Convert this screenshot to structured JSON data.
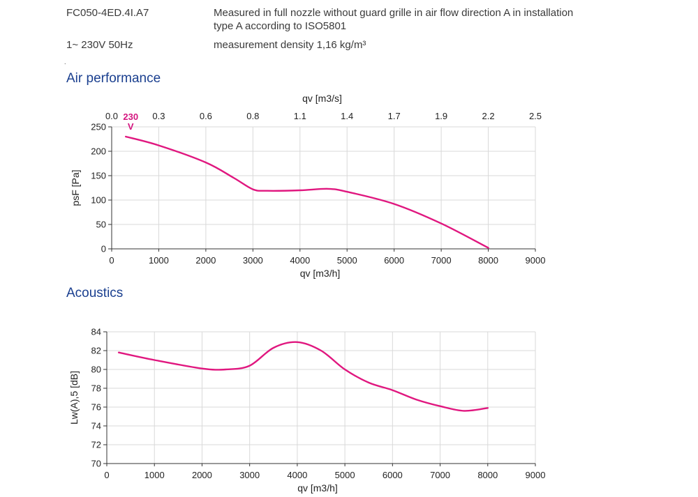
{
  "header": {
    "model": "FC050-4ED.4I.A7",
    "supply": "1~ 230V 50Hz",
    "desc_line1": "Measured in full nozzle without guard grille in air flow direction A in installation",
    "desc_line2": "type A according to ISO5801",
    "density": "measurement density 1,16 kg/m³",
    "dot": "."
  },
  "colors": {
    "curve": "#e0177f",
    "title": "#1a3f8f",
    "grid": "#d9d9d9"
  },
  "chart_data": [
    {
      "type": "line",
      "section_title": "Air performance",
      "xlabel": "qv [m3/h]",
      "x2label": "qv [m3/s]",
      "ylabel": "psF [Pa]",
      "xlim": [
        0,
        9000
      ],
      "ylim": [
        0,
        250
      ],
      "x_ticks": [
        "0",
        "1000",
        "2000",
        "3000",
        "4000",
        "5000",
        "6000",
        "7000",
        "8000",
        "9000"
      ],
      "x2_ticks": [
        "0.0",
        "0.3",
        "0.6",
        "0.8",
        "1.1",
        "1.4",
        "1.7",
        "1.9",
        "2.2",
        "2.5"
      ],
      "y_ticks": [
        "0",
        "50",
        "100",
        "150",
        "200",
        "250"
      ],
      "grid": true,
      "series": [
        {
          "name": "230 V",
          "label_top": "230",
          "label_bottom": "V",
          "x": [
            300,
            1000,
            2000,
            2600,
            3000,
            3300,
            4000,
            4600,
            5000,
            6000,
            7000,
            8000
          ],
          "y": [
            230,
            212,
            177,
            145,
            122,
            119,
            120,
            123,
            117,
            92,
            52,
            2
          ]
        }
      ]
    },
    {
      "type": "line",
      "section_title": "Acoustics",
      "xlabel": "qv [m3/h]",
      "ylabel": "Lw(A),5 [dB]",
      "xlim": [
        0,
        9000
      ],
      "ylim": [
        70,
        84
      ],
      "x_ticks": [
        "0",
        "1000",
        "2000",
        "3000",
        "4000",
        "5000",
        "6000",
        "7000",
        "8000",
        "9000"
      ],
      "y_ticks": [
        "70",
        "72",
        "74",
        "76",
        "78",
        "80",
        "82",
        "84"
      ],
      "grid": true,
      "series": [
        {
          "x": [
            250,
            1000,
            2000,
            2500,
            3000,
            3500,
            4000,
            4500,
            5000,
            5500,
            6000,
            6500,
            7000,
            7500,
            8000
          ],
          "y": [
            81.8,
            81.0,
            80.1,
            80.0,
            80.4,
            82.3,
            82.9,
            82.0,
            80.0,
            78.6,
            77.8,
            76.8,
            76.1,
            75.6,
            75.9
          ]
        }
      ]
    }
  ]
}
